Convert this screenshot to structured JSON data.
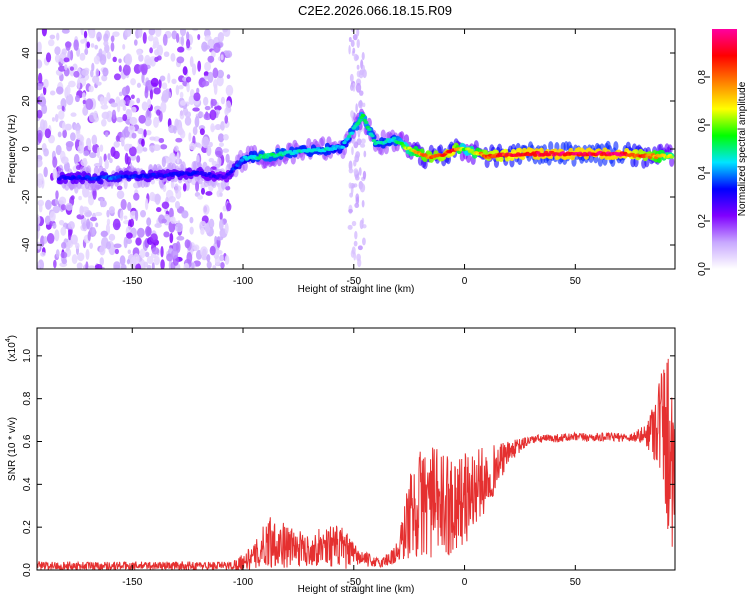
{
  "title": "C2E2.2026.066.18.15.R09",
  "chart_data": [
    {
      "type": "heatmap",
      "name": "spectrogram",
      "xlabel": "Height of straight line (km)",
      "ylabel": "Frequency (Hz)",
      "xlim": [
        -193,
        95
      ],
      "ylim": [
        -50,
        50
      ],
      "xticks": [
        -150,
        -100,
        -50,
        0,
        50
      ],
      "yticks": [
        -40,
        -20,
        0,
        20,
        40
      ],
      "colorbar": {
        "label": "Normalized spectral amplitude",
        "range": [
          0,
          1
        ],
        "ticks": [
          0.0,
          0.2,
          0.4,
          0.6,
          0.8
        ],
        "tick_labels": [
          "0.0",
          "0.2",
          "0.4",
          "0.6",
          "0.8"
        ],
        "colormap": [
          "#ffffff",
          "#c8a8ff",
          "#8000ff",
          "#0000ff",
          "#00e5ff",
          "#00ff00",
          "#ffff00",
          "#ff8000",
          "#ff0000",
          "#ff00a0"
        ]
      },
      "ridge": [
        {
          "x": -175,
          "f": -12,
          "amp": 0.35
        },
        {
          "x": -160,
          "f": -12,
          "amp": 0.4
        },
        {
          "x": -140,
          "f": -11,
          "amp": 0.35
        },
        {
          "x": -120,
          "f": -10,
          "amp": 0.35
        },
        {
          "x": -108,
          "f": -12,
          "amp": 0.3
        },
        {
          "x": -100,
          "f": -4,
          "amp": 0.45
        },
        {
          "x": -90,
          "f": -3,
          "amp": 0.55
        },
        {
          "x": -75,
          "f": -1,
          "amp": 0.5
        },
        {
          "x": -62,
          "f": 0,
          "amp": 0.5
        },
        {
          "x": -55,
          "f": 1,
          "amp": 0.45
        },
        {
          "x": -46,
          "f": 14,
          "amp": 0.6
        },
        {
          "x": -40,
          "f": 2,
          "amp": 0.5
        },
        {
          "x": -32,
          "f": 4,
          "amp": 0.5
        },
        {
          "x": -25,
          "f": 0,
          "amp": 0.7
        },
        {
          "x": -18,
          "f": -3,
          "amp": 0.85
        },
        {
          "x": -10,
          "f": -3,
          "amp": 0.9
        },
        {
          "x": -5,
          "f": 0,
          "amp": 0.95
        },
        {
          "x": 0,
          "f": 0,
          "amp": 0.6
        },
        {
          "x": 10,
          "f": -3,
          "amp": 0.9
        },
        {
          "x": 30,
          "f": -2,
          "amp": 1.0
        },
        {
          "x": 50,
          "f": -2,
          "amp": 1.0
        },
        {
          "x": 70,
          "f": -2,
          "amp": 1.0
        },
        {
          "x": 85,
          "f": -3,
          "amp": 0.85
        },
        {
          "x": 92,
          "f": -3,
          "amp": 0.7
        }
      ],
      "noise_region_x": [
        -193,
        -106
      ],
      "noise_band_x": [
        -52,
        -45
      ]
    },
    {
      "type": "line",
      "name": "snr",
      "xlabel": "Height of straight line (km)",
      "ylabel": "SNR (10 * v/v)",
      "scale_label": "(x10",
      "scale_exp": "4",
      "xlim": [
        -193,
        95
      ],
      "ylim": [
        0,
        1.13
      ],
      "xticks": [
        -150,
        -100,
        -50,
        0,
        50
      ],
      "yticks": [
        0.0,
        0.2,
        0.4,
        0.6,
        0.8,
        1.0
      ],
      "ytick_labels": [
        "0.0",
        "0.2",
        "0.4",
        "0.6",
        "0.8",
        "1.0"
      ],
      "color": "#e53030",
      "envelope": [
        {
          "x": -193,
          "mean": 0.02,
          "amp": 0.02
        },
        {
          "x": -105,
          "mean": 0.02,
          "amp": 0.02
        },
        {
          "x": -95,
          "mean": 0.06,
          "amp": 0.06
        },
        {
          "x": -88,
          "mean": 0.14,
          "amp": 0.13
        },
        {
          "x": -80,
          "mean": 0.11,
          "amp": 0.1
        },
        {
          "x": -70,
          "mean": 0.09,
          "amp": 0.07
        },
        {
          "x": -62,
          "mean": 0.12,
          "amp": 0.1
        },
        {
          "x": -55,
          "mean": 0.1,
          "amp": 0.1
        },
        {
          "x": -48,
          "mean": 0.06,
          "amp": 0.04
        },
        {
          "x": -38,
          "mean": 0.03,
          "amp": 0.02
        },
        {
          "x": -30,
          "mean": 0.08,
          "amp": 0.06
        },
        {
          "x": -25,
          "mean": 0.25,
          "amp": 0.2
        },
        {
          "x": -18,
          "mean": 0.33,
          "amp": 0.28
        },
        {
          "x": -10,
          "mean": 0.3,
          "amp": 0.25
        },
        {
          "x": 0,
          "mean": 0.33,
          "amp": 0.22
        },
        {
          "x": 10,
          "mean": 0.43,
          "amp": 0.15
        },
        {
          "x": 20,
          "mean": 0.55,
          "amp": 0.05
        },
        {
          "x": 30,
          "mean": 0.61,
          "amp": 0.02
        },
        {
          "x": 50,
          "mean": 0.62,
          "amp": 0.02
        },
        {
          "x": 75,
          "mean": 0.62,
          "amp": 0.02
        },
        {
          "x": 82,
          "mean": 0.63,
          "amp": 0.05
        },
        {
          "x": 88,
          "mean": 0.7,
          "amp": 0.25
        },
        {
          "x": 92,
          "mean": 0.6,
          "amp": 0.45
        },
        {
          "x": 95,
          "mean": 0.55,
          "amp": 0.5
        }
      ]
    }
  ]
}
